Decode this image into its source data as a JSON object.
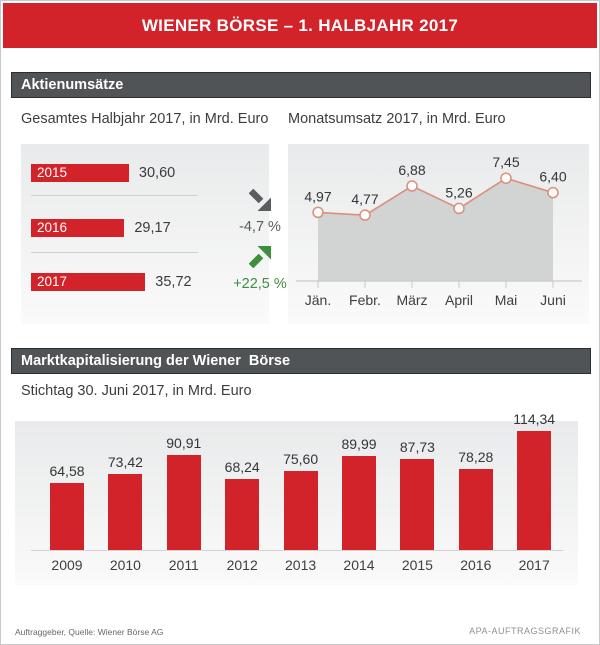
{
  "header": {
    "title": "WIENER BÖRSE – 1. HALBJAHR 2017"
  },
  "sections": {
    "aktienumsaetze": {
      "title": "Aktienumsätze"
    },
    "marktkapitalisierung": {
      "title": "Marktkapitalisierung der Wiener  Börse"
    }
  },
  "footer": {
    "source": "Auftraggeber, Quelle: Wiener Börse AG",
    "credit": "APA-AUFTRAGSGRAFIK"
  },
  "colors": {
    "accent_red": "#d2232a",
    "header_gray": "#515457",
    "negative_gray": "#595d5f",
    "positive_green": "#3e8e3e",
    "line_salmon": "#d98f7d",
    "area_gray": "#d2d3d3",
    "panel_gray": "#e9eaeb"
  },
  "chart_data": [
    {
      "id": "halbjahr",
      "type": "bar",
      "orientation": "horizontal",
      "title": "Gesamtes Halbjahr 2017, in Mrd. Euro",
      "categories": [
        "2015",
        "2016",
        "2017"
      ],
      "values": [
        30.6,
        29.17,
        35.72
      ],
      "value_labels": [
        "30,60",
        "29,17",
        "35,72"
      ],
      "bar_color": "#d2232a",
      "xlim": [
        0,
        40
      ],
      "annotations": [
        {
          "between": [
            "2015",
            "2016"
          ],
          "label": "-4,7 %",
          "direction": "down",
          "color": "#595d5f"
        },
        {
          "between": [
            "2016",
            "2017"
          ],
          "label": "+22,5 %",
          "direction": "up",
          "color": "#3e8e3e"
        }
      ]
    },
    {
      "id": "monatsumsatz",
      "type": "area",
      "title": "Monatsumsatz 2017, in Mrd. Euro",
      "categories": [
        "Jän.",
        "Febr.",
        "März",
        "April",
        "Mai",
        "Juni"
      ],
      "values": [
        4.97,
        4.77,
        6.88,
        5.26,
        7.45,
        6.4
      ],
      "value_labels": [
        "4,97",
        "4,77",
        "6,88",
        "5,26",
        "7,45",
        "6,40"
      ],
      "line_color": "#d98f7d",
      "fill_color": "#d2d3d3",
      "ylim": [
        0,
        10
      ],
      "grid": false,
      "legend": false
    },
    {
      "id": "marktkapitalisierung",
      "type": "bar",
      "orientation": "vertical",
      "title": "Stichtag 30. Juni 2017, in Mrd. Euro",
      "categories": [
        "2009",
        "2010",
        "2011",
        "2012",
        "2013",
        "2014",
        "2015",
        "2016",
        "2017"
      ],
      "values": [
        64.58,
        73.42,
        90.91,
        68.24,
        75.6,
        89.99,
        87.73,
        78.28,
        114.34
      ],
      "value_labels": [
        "64,58",
        "73,42",
        "90,91",
        "68,24",
        "75,60",
        "89,99",
        "87,73",
        "78,28",
        "114,34"
      ],
      "bar_color": "#d2232a",
      "ylim": [
        0,
        125
      ]
    }
  ]
}
